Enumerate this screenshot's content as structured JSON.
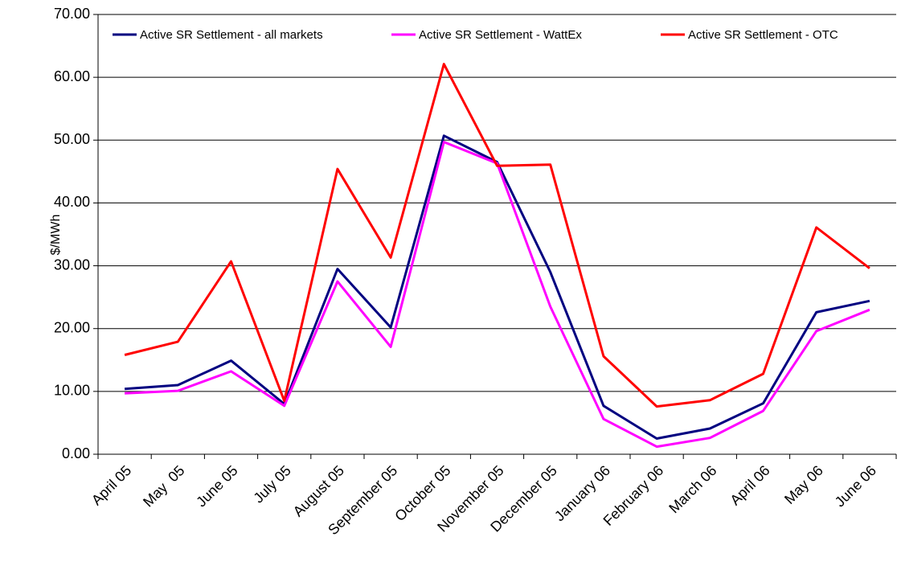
{
  "chart_data": {
    "type": "line",
    "y_label": "$/MWh",
    "categories": [
      "April 05",
      "May  05",
      "June 05",
      "July 05",
      "August 05",
      "September 05",
      "October 05",
      "November 05",
      "December 05",
      "January 06",
      "February 06",
      "March 06",
      "April 06",
      "May 06",
      "June 06"
    ],
    "series": [
      {
        "name": "Active SR Settlement - all markets",
        "color": "#000080",
        "values": [
          10.4,
          11.0,
          14.9,
          8.0,
          29.5,
          20.2,
          50.7,
          46.5,
          29.0,
          7.7,
          2.5,
          4.1,
          8.1,
          22.6,
          24.4
        ]
      },
      {
        "name": "Active SR Settlement - WattEx",
        "color": "#ff00ff",
        "values": [
          9.7,
          10.1,
          13.2,
          7.7,
          27.5,
          17.1,
          49.7,
          46.3,
          23.5,
          5.6,
          1.2,
          2.6,
          6.9,
          19.6,
          23.0
        ]
      },
      {
        "name": "Active SR Settlement - OTC",
        "color": "#ff0000",
        "values": [
          15.8,
          17.9,
          30.7,
          8.5,
          45.4,
          31.3,
          62.1,
          45.9,
          46.1,
          15.6,
          7.6,
          8.6,
          12.8,
          36.1,
          29.6
        ]
      }
    ],
    "ylim": [
      0,
      70
    ],
    "yticks": [
      {
        "value": 0,
        "label": "0.00"
      },
      {
        "value": 10,
        "label": "10.00"
      },
      {
        "value": 20,
        "label": "20.00"
      },
      {
        "value": 30,
        "label": "30.00"
      },
      {
        "value": 40,
        "label": "40.00"
      },
      {
        "value": 50,
        "label": "50.00"
      },
      {
        "value": 60,
        "label": "60.00"
      },
      {
        "value": 70,
        "label": "70.00"
      }
    ],
    "grid": true,
    "legend": "top"
  }
}
